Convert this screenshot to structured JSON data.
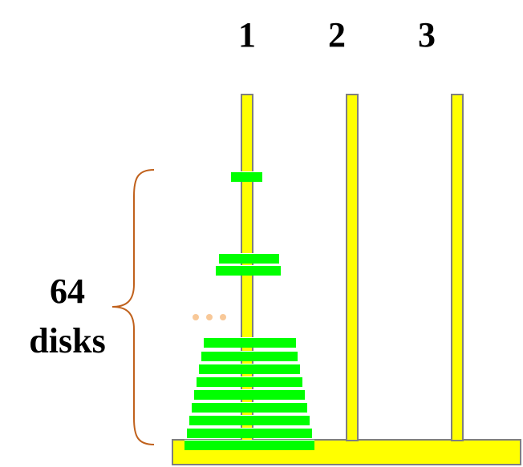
{
  "pegs": [
    {
      "label": "1"
    },
    {
      "label": "2"
    },
    {
      "label": "3"
    }
  ],
  "disk_count": {
    "number": "64",
    "word": "disks"
  },
  "colors": {
    "peg": "#ffff00",
    "base": "#ffff00",
    "outline": "#7f7f7f",
    "disk": "#00ff00",
    "brace": "#c0611c",
    "ellipsis_dots": "#f8c898"
  },
  "icons": {
    "ellipsis": "ellipsis-dots-icon",
    "brace": "curly-brace-icon"
  }
}
